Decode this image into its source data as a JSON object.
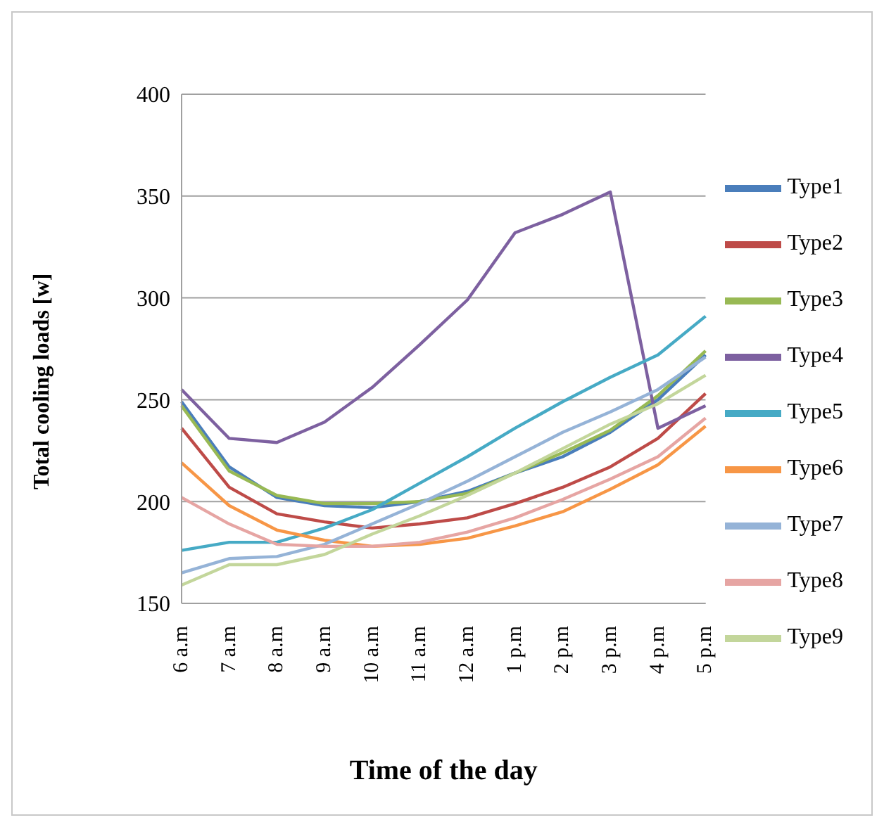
{
  "chart_data": {
    "type": "line",
    "xlabel": "Time of the day",
    "ylabel": "Total cooling loads [w]",
    "categories": [
      "6 a.m",
      "7 a.m",
      "8 a.m",
      "9 a.m",
      "10 a.m",
      "11 a.m",
      "12 a.m",
      "1 p.m",
      "2 p.m",
      "3 p.m",
      "4 p.m",
      "5 p.m"
    ],
    "series": [
      {
        "name": "Type1",
        "color": "#4a7ebb",
        "values": [
          249,
          217,
          202,
          198,
          197,
          200,
          205,
          214,
          222,
          234,
          250,
          272
        ]
      },
      {
        "name": "Type2",
        "color": "#be4b48",
        "values": [
          236,
          207,
          194,
          190,
          187,
          189,
          192,
          199,
          207,
          217,
          231,
          253
        ]
      },
      {
        "name": "Type3",
        "color": "#98b954",
        "values": [
          247,
          215,
          203,
          199,
          199,
          200,
          204,
          214,
          224,
          235,
          252,
          274
        ]
      },
      {
        "name": "Type4",
        "color": "#7d60a0",
        "values": [
          255,
          231,
          229,
          239,
          256,
          277,
          299,
          332,
          341,
          352,
          236,
          247
        ]
      },
      {
        "name": "Type5",
        "color": "#46aac5",
        "values": [
          176,
          180,
          180,
          187,
          196,
          209,
          222,
          236,
          249,
          261,
          272,
          291
        ]
      },
      {
        "name": "Type6",
        "color": "#f79646",
        "values": [
          219,
          198,
          186,
          181,
          178,
          179,
          182,
          188,
          195,
          206,
          218,
          237
        ]
      },
      {
        "name": "Type7",
        "color": "#95b3d7",
        "values": [
          165,
          172,
          173,
          179,
          189,
          199,
          210,
          222,
          234,
          244,
          255,
          271
        ]
      },
      {
        "name": "Type8",
        "color": "#e6a5a3",
        "values": [
          202,
          189,
          179,
          178,
          178,
          180,
          185,
          192,
          201,
          211,
          222,
          241
        ]
      },
      {
        "name": "Type9",
        "color": "#c3d69b",
        "values": [
          159,
          169,
          169,
          174,
          184,
          193,
          203,
          214,
          226,
          238,
          248,
          262
        ]
      }
    ],
    "ylim": [
      150,
      400
    ],
    "yticks": [
      150,
      200,
      250,
      300,
      350,
      400
    ],
    "grid": "y",
    "legend": "right",
    "marker": "none",
    "line_style": "solid"
  }
}
